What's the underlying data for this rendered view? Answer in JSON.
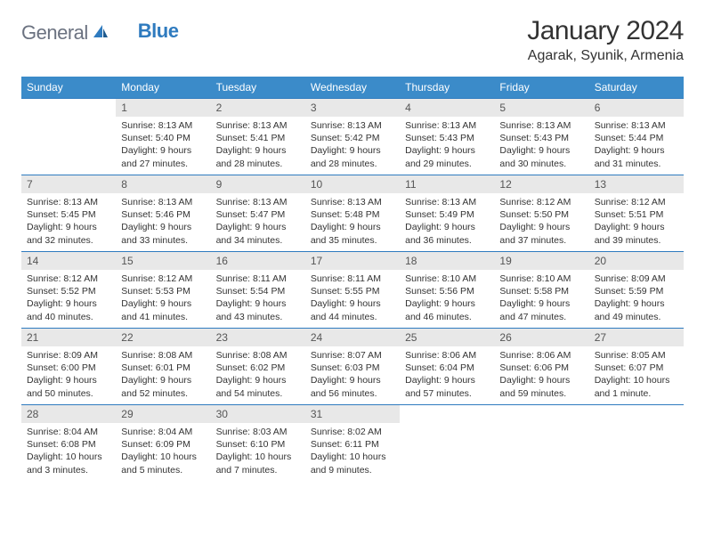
{
  "logo": {
    "part1": "General",
    "part2": "Blue"
  },
  "title": "January 2024",
  "location": "Agarak, Syunik, Armenia",
  "colors": {
    "header_bg": "#3b8bc9",
    "border": "#2f7bbf",
    "daynum_bg": "#e8e8e8",
    "logo_gray": "#6b7280",
    "logo_blue": "#2f7bbf"
  },
  "weekdays": [
    "Sunday",
    "Monday",
    "Tuesday",
    "Wednesday",
    "Thursday",
    "Friday",
    "Saturday"
  ],
  "weeks": [
    [
      null,
      {
        "n": "1",
        "sr": "Sunrise: 8:13 AM",
        "ss": "Sunset: 5:40 PM",
        "dl": "Daylight: 9 hours and 27 minutes."
      },
      {
        "n": "2",
        "sr": "Sunrise: 8:13 AM",
        "ss": "Sunset: 5:41 PM",
        "dl": "Daylight: 9 hours and 28 minutes."
      },
      {
        "n": "3",
        "sr": "Sunrise: 8:13 AM",
        "ss": "Sunset: 5:42 PM",
        "dl": "Daylight: 9 hours and 28 minutes."
      },
      {
        "n": "4",
        "sr": "Sunrise: 8:13 AM",
        "ss": "Sunset: 5:43 PM",
        "dl": "Daylight: 9 hours and 29 minutes."
      },
      {
        "n": "5",
        "sr": "Sunrise: 8:13 AM",
        "ss": "Sunset: 5:43 PM",
        "dl": "Daylight: 9 hours and 30 minutes."
      },
      {
        "n": "6",
        "sr": "Sunrise: 8:13 AM",
        "ss": "Sunset: 5:44 PM",
        "dl": "Daylight: 9 hours and 31 minutes."
      }
    ],
    [
      {
        "n": "7",
        "sr": "Sunrise: 8:13 AM",
        "ss": "Sunset: 5:45 PM",
        "dl": "Daylight: 9 hours and 32 minutes."
      },
      {
        "n": "8",
        "sr": "Sunrise: 8:13 AM",
        "ss": "Sunset: 5:46 PM",
        "dl": "Daylight: 9 hours and 33 minutes."
      },
      {
        "n": "9",
        "sr": "Sunrise: 8:13 AM",
        "ss": "Sunset: 5:47 PM",
        "dl": "Daylight: 9 hours and 34 minutes."
      },
      {
        "n": "10",
        "sr": "Sunrise: 8:13 AM",
        "ss": "Sunset: 5:48 PM",
        "dl": "Daylight: 9 hours and 35 minutes."
      },
      {
        "n": "11",
        "sr": "Sunrise: 8:13 AM",
        "ss": "Sunset: 5:49 PM",
        "dl": "Daylight: 9 hours and 36 minutes."
      },
      {
        "n": "12",
        "sr": "Sunrise: 8:12 AM",
        "ss": "Sunset: 5:50 PM",
        "dl": "Daylight: 9 hours and 37 minutes."
      },
      {
        "n": "13",
        "sr": "Sunrise: 8:12 AM",
        "ss": "Sunset: 5:51 PM",
        "dl": "Daylight: 9 hours and 39 minutes."
      }
    ],
    [
      {
        "n": "14",
        "sr": "Sunrise: 8:12 AM",
        "ss": "Sunset: 5:52 PM",
        "dl": "Daylight: 9 hours and 40 minutes."
      },
      {
        "n": "15",
        "sr": "Sunrise: 8:12 AM",
        "ss": "Sunset: 5:53 PM",
        "dl": "Daylight: 9 hours and 41 minutes."
      },
      {
        "n": "16",
        "sr": "Sunrise: 8:11 AM",
        "ss": "Sunset: 5:54 PM",
        "dl": "Daylight: 9 hours and 43 minutes."
      },
      {
        "n": "17",
        "sr": "Sunrise: 8:11 AM",
        "ss": "Sunset: 5:55 PM",
        "dl": "Daylight: 9 hours and 44 minutes."
      },
      {
        "n": "18",
        "sr": "Sunrise: 8:10 AM",
        "ss": "Sunset: 5:56 PM",
        "dl": "Daylight: 9 hours and 46 minutes."
      },
      {
        "n": "19",
        "sr": "Sunrise: 8:10 AM",
        "ss": "Sunset: 5:58 PM",
        "dl": "Daylight: 9 hours and 47 minutes."
      },
      {
        "n": "20",
        "sr": "Sunrise: 8:09 AM",
        "ss": "Sunset: 5:59 PM",
        "dl": "Daylight: 9 hours and 49 minutes."
      }
    ],
    [
      {
        "n": "21",
        "sr": "Sunrise: 8:09 AM",
        "ss": "Sunset: 6:00 PM",
        "dl": "Daylight: 9 hours and 50 minutes."
      },
      {
        "n": "22",
        "sr": "Sunrise: 8:08 AM",
        "ss": "Sunset: 6:01 PM",
        "dl": "Daylight: 9 hours and 52 minutes."
      },
      {
        "n": "23",
        "sr": "Sunrise: 8:08 AM",
        "ss": "Sunset: 6:02 PM",
        "dl": "Daylight: 9 hours and 54 minutes."
      },
      {
        "n": "24",
        "sr": "Sunrise: 8:07 AM",
        "ss": "Sunset: 6:03 PM",
        "dl": "Daylight: 9 hours and 56 minutes."
      },
      {
        "n": "25",
        "sr": "Sunrise: 8:06 AM",
        "ss": "Sunset: 6:04 PM",
        "dl": "Daylight: 9 hours and 57 minutes."
      },
      {
        "n": "26",
        "sr": "Sunrise: 8:06 AM",
        "ss": "Sunset: 6:06 PM",
        "dl": "Daylight: 9 hours and 59 minutes."
      },
      {
        "n": "27",
        "sr": "Sunrise: 8:05 AM",
        "ss": "Sunset: 6:07 PM",
        "dl": "Daylight: 10 hours and 1 minute."
      }
    ],
    [
      {
        "n": "28",
        "sr": "Sunrise: 8:04 AM",
        "ss": "Sunset: 6:08 PM",
        "dl": "Daylight: 10 hours and 3 minutes."
      },
      {
        "n": "29",
        "sr": "Sunrise: 8:04 AM",
        "ss": "Sunset: 6:09 PM",
        "dl": "Daylight: 10 hours and 5 minutes."
      },
      {
        "n": "30",
        "sr": "Sunrise: 8:03 AM",
        "ss": "Sunset: 6:10 PM",
        "dl": "Daylight: 10 hours and 7 minutes."
      },
      {
        "n": "31",
        "sr": "Sunrise: 8:02 AM",
        "ss": "Sunset: 6:11 PM",
        "dl": "Daylight: 10 hours and 9 minutes."
      },
      null,
      null,
      null
    ]
  ]
}
